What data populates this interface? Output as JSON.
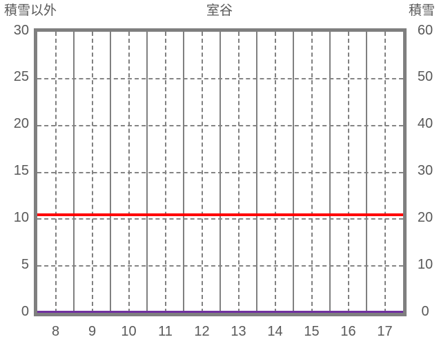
{
  "title": "室谷",
  "axes": {
    "left": {
      "label": "積雪以外",
      "tick_values": [
        30,
        25,
        20,
        15,
        10,
        5,
        0
      ]
    },
    "right": {
      "label": "積雪",
      "tick_values": [
        60,
        50,
        40,
        30,
        20,
        10,
        0
      ]
    },
    "x": {
      "tick_labels": [
        "8",
        "9",
        "10",
        "11",
        "12",
        "13",
        "14",
        "15",
        "16",
        "17"
      ]
    }
  },
  "chart_data": {
    "type": "line",
    "title": "室谷",
    "x": [
      8,
      9,
      10,
      11,
      12,
      13,
      14,
      15,
      16,
      17
    ],
    "left_axis": {
      "label": "積雪以外",
      "min": 0,
      "max": 30,
      "step": 5
    },
    "right_axis": {
      "label": "積雪",
      "min": 0,
      "max": 60,
      "step": 10
    },
    "series": [
      {
        "name": "snow-depth-line",
        "color": "#ff0000",
        "axis": "right",
        "thickness": 4,
        "values": [
          21,
          21,
          21,
          21,
          21,
          21,
          21,
          21,
          21,
          21
        ]
      },
      {
        "name": "baseline-line",
        "color": "#7030a0",
        "axis": "right",
        "thickness": 3,
        "values": [
          0,
          0,
          0,
          0,
          0,
          0,
          0,
          0,
          0,
          0
        ]
      }
    ],
    "grid": {
      "vertical_solid": "at x category boundaries",
      "vertical_dashed": "at x category midpoints",
      "horizontal_dashed_every_left_units": 5
    },
    "legend": "none"
  },
  "colors": {
    "background": "#ffffff",
    "frame": "#7f7f7f",
    "grid": "#808080",
    "text": "#595959",
    "red_line": "#ff0000",
    "purple_line": "#7030a0"
  }
}
